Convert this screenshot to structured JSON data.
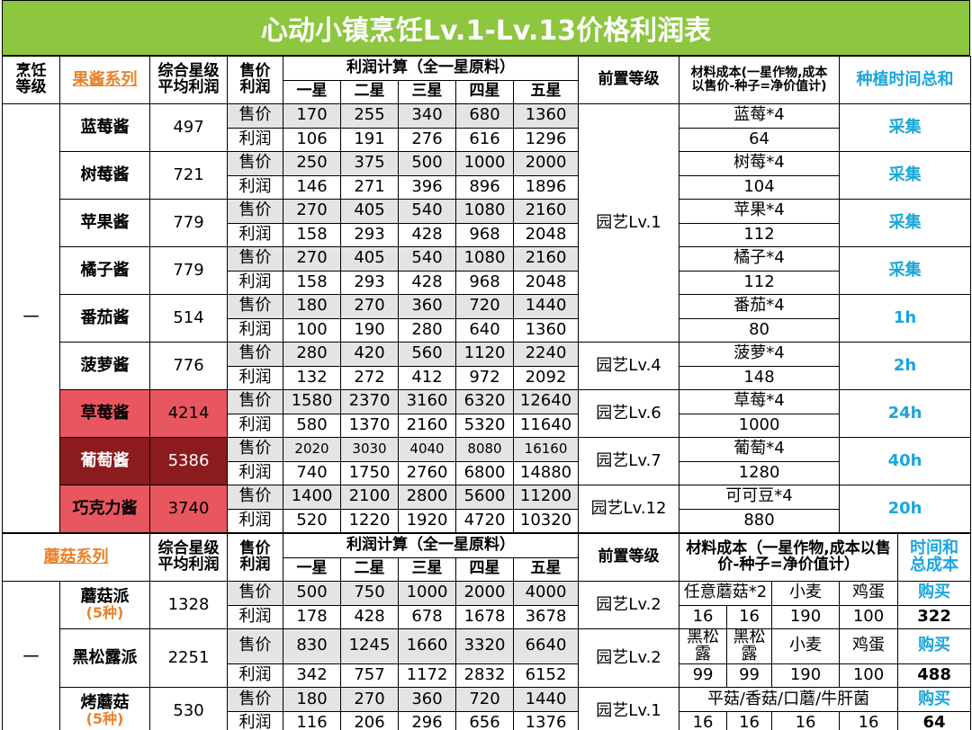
{
  "title": "心动小镇烹饪Lv.1-Lv.13价格利润表",
  "jam": {
    "headers": {
      "level": "烹饪\n等级",
      "series": "果酱系列",
      "avg": "综合星级\n平均利润",
      "price_profit": "售价\n利润",
      "calc": "利润计算（全一星原料）",
      "stars": [
        "一星",
        "二星",
        "三星",
        "四星",
        "五星"
      ],
      "prereq": "前置等级",
      "material": "材料成本(一星作物,成本\n以售价-种子=净价值计)",
      "time": "种植时间总和"
    },
    "level": "一",
    "rows": [
      {
        "name": "蓝莓酱",
        "avg": 497,
        "price_label": "售价",
        "price": [
          170,
          255,
          340,
          680,
          1360
        ],
        "profit_label": "利润",
        "profit": [
          106,
          191,
          276,
          616,
          1296
        ],
        "prereq": "园艺Lv.1",
        "material": "蓝莓*4",
        "material_cost": 64,
        "time": "采集"
      },
      {
        "name": "树莓酱",
        "avg": 721,
        "price_label": "售价",
        "price": [
          250,
          375,
          500,
          1000,
          2000
        ],
        "profit_label": "利润",
        "profit": [
          146,
          271,
          396,
          896,
          1896
        ],
        "material": "树莓*4",
        "material_cost": 104,
        "time": "采集"
      },
      {
        "name": "苹果酱",
        "avg": 779,
        "price_label": "售价",
        "price": [
          270,
          405,
          540,
          1080,
          2160
        ],
        "profit_label": "利润",
        "profit": [
          158,
          293,
          428,
          968,
          2048
        ],
        "material": "苹果*4",
        "material_cost": 112,
        "time": "采集"
      },
      {
        "name": "橘子酱",
        "avg": 779,
        "price_label": "售价",
        "price": [
          270,
          405,
          540,
          1080,
          2160
        ],
        "profit_label": "利润",
        "profit": [
          158,
          293,
          428,
          968,
          2048
        ],
        "material": "橘子*4",
        "material_cost": 112,
        "time": "采集"
      },
      {
        "name": "番茄酱",
        "avg": 514,
        "price_label": "售价",
        "price": [
          180,
          270,
          360,
          720,
          1440
        ],
        "profit_label": "利润",
        "profit": [
          100,
          190,
          280,
          640,
          1360
        ],
        "material": "番茄*4",
        "material_cost": 80,
        "time": "1h"
      },
      {
        "name": "菠萝酱",
        "avg": 776,
        "price_label": "售价",
        "price": [
          280,
          420,
          560,
          1120,
          2240
        ],
        "profit_label": "利润",
        "profit": [
          132,
          272,
          412,
          972,
          2092
        ],
        "prereq": "园艺Lv.4",
        "material": "菠萝*4",
        "material_cost": 148,
        "time": "2h"
      },
      {
        "name": "草莓酱",
        "avg": 4214,
        "price_label": "售价",
        "price": [
          1580,
          2370,
          3160,
          6320,
          12640
        ],
        "profit_label": "利润",
        "profit": [
          580,
          1370,
          2160,
          5320,
          11640
        ],
        "prereq": "园艺Lv.6",
        "material": "草莓*4",
        "material_cost": 1000,
        "time": "24h",
        "highlight": "#e8575f"
      },
      {
        "name": "葡萄酱",
        "avg": 5386,
        "price_label": "售价",
        "price": [
          2020,
          3030,
          4040,
          8080,
          16160
        ],
        "profit_label": "利润",
        "profit": [
          740,
          1750,
          2760,
          6800,
          14880
        ],
        "prereq": "园艺Lv.7",
        "material": "葡萄*4",
        "material_cost": 1280,
        "time": "40h",
        "highlight": "#8c1b1e",
        "highlight_text": "#ffffff"
      },
      {
        "name": "巧克力酱",
        "avg": 3740,
        "price_label": "售价",
        "price": [
          1400,
          2100,
          2800,
          5600,
          11200
        ],
        "profit_label": "利润",
        "profit": [
          520,
          1220,
          1920,
          4720,
          10320
        ],
        "prereq": "园艺Lv.12",
        "material": "可可豆*4",
        "material_cost": 880,
        "time": "20h",
        "highlight": "#e8575f"
      }
    ]
  },
  "mushroom": {
    "headers": {
      "series": "蘑菇系列",
      "avg": "综合星级\n平均利润",
      "price_profit": "售价\n利润",
      "calc": "利润计算（全一星原料）",
      "stars": [
        "一星",
        "二星",
        "三星",
        "四星",
        "五星"
      ],
      "prereq": "前置等级",
      "material": "材料成本（一星作物,成本以售\n价-种子=净价值计）",
      "time": "时间和\n总成本"
    },
    "level": "一",
    "rows": [
      {
        "name": "蘑菇派",
        "sub": "(5种)",
        "avg": 1328,
        "price_label": "售价",
        "price": [
          500,
          750,
          1000,
          2000,
          4000
        ],
        "profit_label": "利润",
        "profit": [
          178,
          428,
          678,
          1678,
          3678
        ],
        "prereq": "园艺Lv.2",
        "materials": [
          "任意蘑菇*2",
          "小麦",
          "鸡蛋"
        ],
        "costs": [
          16,
          16,
          190,
          100
        ],
        "time": "购买",
        "total": 322
      },
      {
        "name": "黑松露派",
        "avg": 2251,
        "price_label": "售价",
        "price": [
          830,
          1245,
          1660,
          3320,
          6640
        ],
        "profit_label": "利润",
        "profit": [
          342,
          757,
          1172,
          2832,
          6152
        ],
        "prereq": "园艺Lv.2",
        "materials": [
          "黑松露",
          "黑松露",
          "小麦",
          "鸡蛋"
        ],
        "costs": [
          99,
          99,
          190,
          100
        ],
        "time": "购买",
        "total": 488
      },
      {
        "name": "烤蘑菇",
        "sub": "(5种)",
        "avg": 530,
        "price_label": "售价",
        "price": [
          180,
          270,
          360,
          720,
          1440
        ],
        "profit_label": "利润",
        "profit": [
          116,
          206,
          296,
          656,
          1376
        ],
        "prereq": "园艺Lv.1",
        "materials": [
          "平菇/香菇/口蘑/牛肝菌"
        ],
        "costs": [
          16,
          16,
          16,
          16
        ],
        "time": "购买",
        "total": 64
      }
    ]
  }
}
